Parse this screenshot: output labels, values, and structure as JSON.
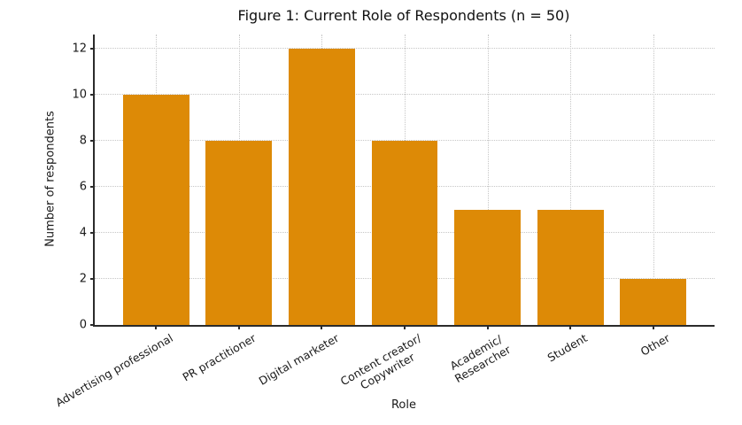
{
  "figure": {
    "background": "#ffffff"
  },
  "chart_data": {
    "type": "bar",
    "title": "Figure 1: Current Role of Respondents (n = 50)",
    "xlabel": "Role",
    "ylabel": "Number of respondents",
    "categories": [
      "Advertising professional",
      "PR practitioner",
      "Digital marketer",
      "Content creator/\nCopywriter",
      "Academic/\nResearcher",
      "Student",
      "Other"
    ],
    "values": [
      10,
      8,
      12,
      8,
      5,
      5,
      2
    ],
    "total_n": 50,
    "ylim": [
      0,
      12.6
    ],
    "yticks": [
      0,
      2,
      4,
      6,
      8,
      10,
      12
    ],
    "bar_color": "#dd8a06",
    "bar_width_units": 0.8,
    "x_margin_units": 0.74,
    "grid": "dotted, both axes",
    "legend": "none",
    "tick_label_rotation_deg": 30
  }
}
